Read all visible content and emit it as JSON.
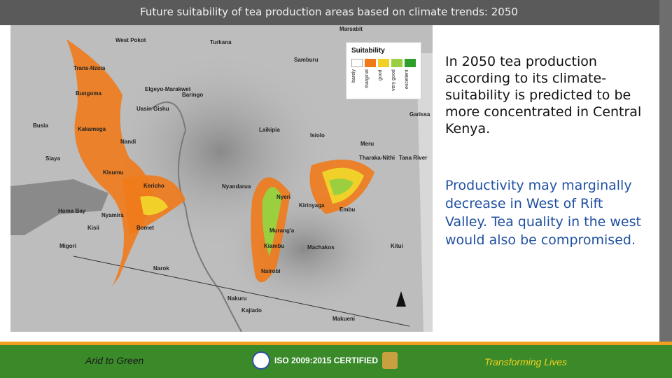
{
  "slide": {
    "title": "Future suitability of tea production areas based on climate trends: 2050",
    "paragraph1": "In 2050 tea production according to its climate-suitability is predicted to be more concentrated in Central Kenya.",
    "paragraph2": "Productivity may marginally decrease in West of Rift Valley. Tea quality  in the west would also be compromised."
  },
  "legend": {
    "title": "Suitability",
    "classes": [
      {
        "label": "barely",
        "color": "#ffffff"
      },
      {
        "label": "marginal",
        "color": "#f07a1a"
      },
      {
        "label": "good",
        "color": "#f2d02a"
      },
      {
        "label": "very good",
        "color": "#9ad040"
      },
      {
        "label": "excellent",
        "color": "#2f9e2a"
      }
    ]
  },
  "map_labels": {
    "west_pokot": "West Pokot",
    "turkana": "Turkana",
    "samburu": "Samburu",
    "trans_nzoia": "Trans-Nzoia",
    "elgeyo": "Elgeyo-Marakwet",
    "baringo": "Baringo",
    "uasin_gishu": "Uasin Gishu",
    "bungoma": "Bungoma",
    "busia": "Busia",
    "kakamega": "Kakamega",
    "nandi": "Nandi",
    "laikipia": "Laikipia",
    "isiolo": "Isiolo",
    "meru": "Meru",
    "siaya": "Siaya",
    "kisumu": "Kisumu",
    "kericho": "Kericho",
    "nyandarua": "Nyandarua",
    "nyeri": "Nyeri",
    "embu": "Embu",
    "homa_bay": "Homa Bay",
    "nyamira": "Nyamira",
    "kisii": "Kisii",
    "migori": "Migori",
    "bomet": "Bomet",
    "muranga": "Murang'a",
    "kirinyaga": "Kirinyaga",
    "kiambu": "Kiambu",
    "machakos": "Machakos",
    "kitui": "Kitui",
    "nairobi": "Nairobi",
    "narok": "Narok",
    "kajiado": "Kajiado",
    "makueni": "Makueni",
    "tharaka_nithi": "Tharaka-Nithi",
    "marsabit": "Marsabit",
    "garissa": "Garissa",
    "tana_river": "Tana River",
    "nakuru": "Nakuru"
  },
  "footer": {
    "left": "Arid to Green",
    "center": "ISO 2009:2015 CERTIFIED",
    "right": "Transforming Lives"
  },
  "colors": {
    "title_bg": "#5a5a5a",
    "footer_green": "#3a8a2a",
    "footer_orange": "#f0a020",
    "text_blue": "#2050a0"
  }
}
